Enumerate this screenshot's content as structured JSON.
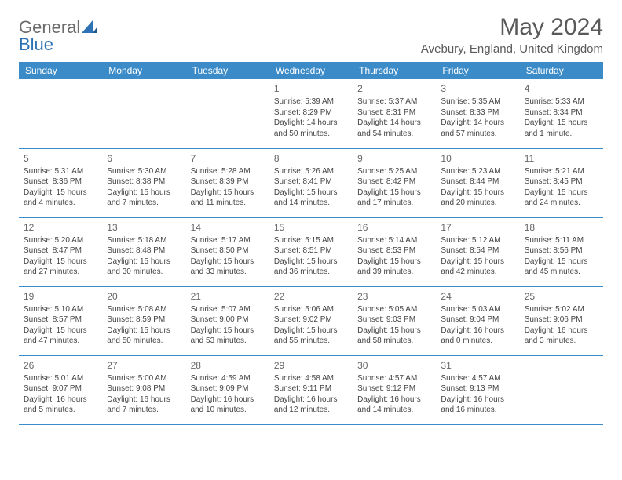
{
  "logo": {
    "text1": "General",
    "text2": "Blue"
  },
  "title": "May 2024",
  "location": "Avebury, England, United Kingdom",
  "colors": {
    "header_bg": "#3b8bc9",
    "header_text": "#ffffff",
    "row_border": "#3b8bc9",
    "body_text": "#444444",
    "title_text": "#5a5a5a",
    "logo_gray": "#6b6b6b",
    "logo_blue": "#2d72b5",
    "background": "#ffffff"
  },
  "day_headers": [
    "Sunday",
    "Monday",
    "Tuesday",
    "Wednesday",
    "Thursday",
    "Friday",
    "Saturday"
  ],
  "weeks": [
    [
      null,
      null,
      null,
      {
        "n": "1",
        "sunrise": "Sunrise: 5:39 AM",
        "sunset": "Sunset: 8:29 PM",
        "daylight": "Daylight: 14 hours and 50 minutes."
      },
      {
        "n": "2",
        "sunrise": "Sunrise: 5:37 AM",
        "sunset": "Sunset: 8:31 PM",
        "daylight": "Daylight: 14 hours and 54 minutes."
      },
      {
        "n": "3",
        "sunrise": "Sunrise: 5:35 AM",
        "sunset": "Sunset: 8:33 PM",
        "daylight": "Daylight: 14 hours and 57 minutes."
      },
      {
        "n": "4",
        "sunrise": "Sunrise: 5:33 AM",
        "sunset": "Sunset: 8:34 PM",
        "daylight": "Daylight: 15 hours and 1 minute."
      }
    ],
    [
      {
        "n": "5",
        "sunrise": "Sunrise: 5:31 AM",
        "sunset": "Sunset: 8:36 PM",
        "daylight": "Daylight: 15 hours and 4 minutes."
      },
      {
        "n": "6",
        "sunrise": "Sunrise: 5:30 AM",
        "sunset": "Sunset: 8:38 PM",
        "daylight": "Daylight: 15 hours and 7 minutes."
      },
      {
        "n": "7",
        "sunrise": "Sunrise: 5:28 AM",
        "sunset": "Sunset: 8:39 PM",
        "daylight": "Daylight: 15 hours and 11 minutes."
      },
      {
        "n": "8",
        "sunrise": "Sunrise: 5:26 AM",
        "sunset": "Sunset: 8:41 PM",
        "daylight": "Daylight: 15 hours and 14 minutes."
      },
      {
        "n": "9",
        "sunrise": "Sunrise: 5:25 AM",
        "sunset": "Sunset: 8:42 PM",
        "daylight": "Daylight: 15 hours and 17 minutes."
      },
      {
        "n": "10",
        "sunrise": "Sunrise: 5:23 AM",
        "sunset": "Sunset: 8:44 PM",
        "daylight": "Daylight: 15 hours and 20 minutes."
      },
      {
        "n": "11",
        "sunrise": "Sunrise: 5:21 AM",
        "sunset": "Sunset: 8:45 PM",
        "daylight": "Daylight: 15 hours and 24 minutes."
      }
    ],
    [
      {
        "n": "12",
        "sunrise": "Sunrise: 5:20 AM",
        "sunset": "Sunset: 8:47 PM",
        "daylight": "Daylight: 15 hours and 27 minutes."
      },
      {
        "n": "13",
        "sunrise": "Sunrise: 5:18 AM",
        "sunset": "Sunset: 8:48 PM",
        "daylight": "Daylight: 15 hours and 30 minutes."
      },
      {
        "n": "14",
        "sunrise": "Sunrise: 5:17 AM",
        "sunset": "Sunset: 8:50 PM",
        "daylight": "Daylight: 15 hours and 33 minutes."
      },
      {
        "n": "15",
        "sunrise": "Sunrise: 5:15 AM",
        "sunset": "Sunset: 8:51 PM",
        "daylight": "Daylight: 15 hours and 36 minutes."
      },
      {
        "n": "16",
        "sunrise": "Sunrise: 5:14 AM",
        "sunset": "Sunset: 8:53 PM",
        "daylight": "Daylight: 15 hours and 39 minutes."
      },
      {
        "n": "17",
        "sunrise": "Sunrise: 5:12 AM",
        "sunset": "Sunset: 8:54 PM",
        "daylight": "Daylight: 15 hours and 42 minutes."
      },
      {
        "n": "18",
        "sunrise": "Sunrise: 5:11 AM",
        "sunset": "Sunset: 8:56 PM",
        "daylight": "Daylight: 15 hours and 45 minutes."
      }
    ],
    [
      {
        "n": "19",
        "sunrise": "Sunrise: 5:10 AM",
        "sunset": "Sunset: 8:57 PM",
        "daylight": "Daylight: 15 hours and 47 minutes."
      },
      {
        "n": "20",
        "sunrise": "Sunrise: 5:08 AM",
        "sunset": "Sunset: 8:59 PM",
        "daylight": "Daylight: 15 hours and 50 minutes."
      },
      {
        "n": "21",
        "sunrise": "Sunrise: 5:07 AM",
        "sunset": "Sunset: 9:00 PM",
        "daylight": "Daylight: 15 hours and 53 minutes."
      },
      {
        "n": "22",
        "sunrise": "Sunrise: 5:06 AM",
        "sunset": "Sunset: 9:02 PM",
        "daylight": "Daylight: 15 hours and 55 minutes."
      },
      {
        "n": "23",
        "sunrise": "Sunrise: 5:05 AM",
        "sunset": "Sunset: 9:03 PM",
        "daylight": "Daylight: 15 hours and 58 minutes."
      },
      {
        "n": "24",
        "sunrise": "Sunrise: 5:03 AM",
        "sunset": "Sunset: 9:04 PM",
        "daylight": "Daylight: 16 hours and 0 minutes."
      },
      {
        "n": "25",
        "sunrise": "Sunrise: 5:02 AM",
        "sunset": "Sunset: 9:06 PM",
        "daylight": "Daylight: 16 hours and 3 minutes."
      }
    ],
    [
      {
        "n": "26",
        "sunrise": "Sunrise: 5:01 AM",
        "sunset": "Sunset: 9:07 PM",
        "daylight": "Daylight: 16 hours and 5 minutes."
      },
      {
        "n": "27",
        "sunrise": "Sunrise: 5:00 AM",
        "sunset": "Sunset: 9:08 PM",
        "daylight": "Daylight: 16 hours and 7 minutes."
      },
      {
        "n": "28",
        "sunrise": "Sunrise: 4:59 AM",
        "sunset": "Sunset: 9:09 PM",
        "daylight": "Daylight: 16 hours and 10 minutes."
      },
      {
        "n": "29",
        "sunrise": "Sunrise: 4:58 AM",
        "sunset": "Sunset: 9:11 PM",
        "daylight": "Daylight: 16 hours and 12 minutes."
      },
      {
        "n": "30",
        "sunrise": "Sunrise: 4:57 AM",
        "sunset": "Sunset: 9:12 PM",
        "daylight": "Daylight: 16 hours and 14 minutes."
      },
      {
        "n": "31",
        "sunrise": "Sunrise: 4:57 AM",
        "sunset": "Sunset: 9:13 PM",
        "daylight": "Daylight: 16 hours and 16 minutes."
      },
      null
    ]
  ]
}
